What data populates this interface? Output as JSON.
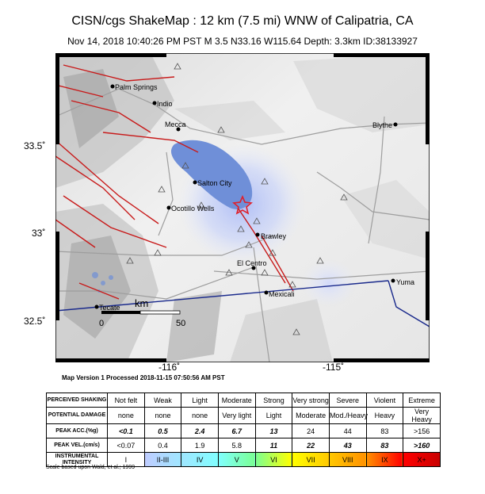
{
  "title": "CISN/cgs ShakeMap : 12 km (7.5 mi) WNW of Calipatria, CA",
  "subtitle": "Nov 14, 2018 10:40:26 PM PST    M 3.5    N33.16 W115.64    Depth: 3.3km    ID:38133927",
  "map": {
    "lat_ticks": [
      "33.5˚",
      "33˚",
      "32.5˚"
    ],
    "lon_ticks": [
      "-116˚",
      "-115˚"
    ],
    "cities": [
      "Palm Springs",
      "Indio",
      "Mecca",
      "Blythe",
      "Salton City",
      "Ocotillo Wells",
      "Brawley",
      "El Centro",
      "Yuma",
      "Mexicali",
      "Tecate"
    ],
    "scale_unit": "km",
    "scale_min": "0",
    "scale_max": "50",
    "epicenter_color": "#e0202a",
    "lake_color": "#6f8fd8"
  },
  "version_line": "Map Version 1 Processed 2018-11-15 07:50:56 AM PST",
  "legend": {
    "row_headers": [
      "PERCEIVED SHAKING",
      "POTENTIAL DAMAGE",
      "PEAK ACC.(%g)",
      "PEAK VEL.(cm/s)",
      "INSTRUMENTAL INTENSITY"
    ],
    "shaking": [
      "Not felt",
      "Weak",
      "Light",
      "Moderate",
      "Strong",
      "Very strong",
      "Severe",
      "Violent",
      "Extreme"
    ],
    "damage": [
      "none",
      "none",
      "none",
      "Very light",
      "Light",
      "Moderate",
      "Mod./Heavy",
      "Heavy",
      "Very Heavy"
    ],
    "acc": [
      "<0.1",
      "0.5",
      "2.4",
      "6.7",
      "13",
      "24",
      "44",
      "83",
      ">156"
    ],
    "vel": [
      "<0.07",
      "0.4",
      "1.9",
      "5.8",
      "11",
      "22",
      "43",
      "83",
      ">160"
    ],
    "intensity": [
      "I",
      "II-III",
      "IV",
      "V",
      "VI",
      "VII",
      "VIII",
      "IX",
      "X+"
    ],
    "intensity_colors": [
      "#ffffff",
      "#bfccff",
      "#a0e6ff",
      "#80ffff",
      "#7aff93",
      "#ffff00",
      "#ffc800",
      "#ff9100",
      "#ff0000",
      "#c80000"
    ]
  },
  "footnote": "Scale based upon Wald, et al.; 1999"
}
